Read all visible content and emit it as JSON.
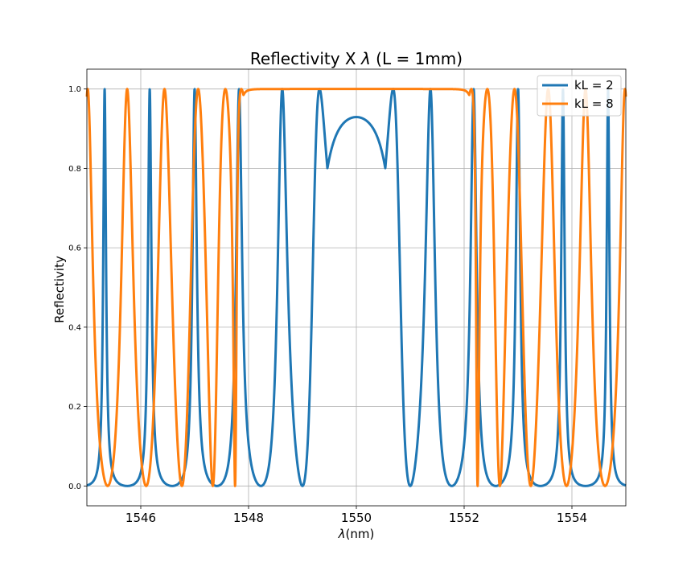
{
  "chart_data": {
    "type": "line",
    "title": "Reflectivity X λ (L = 1mm)",
    "title_prefix": "Reflectivity X ",
    "title_symbol": "λ",
    "title_suffix": " (L = 1mm)",
    "xlabel": "λ(nm)",
    "xlabel_symbol": "λ",
    "xlabel_unit": "(nm)",
    "ylabel": "Reflectivity",
    "xlim": [
      1545,
      1555
    ],
    "ylim": [
      -0.05,
      1.05
    ],
    "xticks": [
      1546,
      1548,
      1550,
      1552,
      1554
    ],
    "xtick_labels": [
      "1546",
      "1548",
      "1550",
      "1552",
      "1554"
    ],
    "yticks": [
      0.0,
      0.2,
      0.4,
      0.6,
      0.8,
      1.0
    ],
    "ytick_labels": [
      "0.0",
      "0.2",
      "0.4",
      "0.6",
      "0.8",
      "1.0"
    ],
    "grid": true,
    "legend_position": "top-right",
    "series": [
      {
        "name": "kL = 2",
        "color": "#1f77b4",
        "model": "uniform-bragg-grating",
        "kL": 2,
        "center_wavelength_nm": 1550,
        "zero_offset_nm": 1.0,
        "x": [
          1545.0,
          1545.5,
          1546.0,
          1546.3,
          1546.7,
          1547.0,
          1547.4,
          1547.9,
          1548.3,
          1548.7,
          1549.0,
          1549.3,
          1549.6,
          1550.0,
          1550.4,
          1550.7,
          1551.0,
          1551.3,
          1551.7,
          1552.1,
          1552.6,
          1553.0,
          1553.4,
          1554.0,
          1554.6,
          1555.0
        ],
        "values": [
          0.0,
          0.012,
          0.0,
          0.018,
          0.0,
          0.033,
          0.0,
          0.062,
          0.0,
          0.158,
          0.0,
          0.6,
          0.88,
          0.929,
          0.88,
          0.6,
          0.0,
          0.158,
          0.0,
          0.062,
          0.0,
          0.033,
          0.0,
          0.018,
          0.012,
          0.0
        ]
      },
      {
        "name": "kL = 8",
        "color": "#ff7f0e",
        "model": "uniform-bragg-grating",
        "kL": 8,
        "center_wavelength_nm": 1550,
        "zero_offset_nm": 2.25,
        "x": [
          1545.0,
          1545.35,
          1545.7,
          1546.05,
          1546.4,
          1546.7,
          1547.05,
          1547.3,
          1547.6,
          1547.75,
          1547.9,
          1548.2,
          1550.0,
          1551.8,
          1552.1,
          1552.25,
          1552.4,
          1552.7,
          1552.95,
          1553.3,
          1553.6,
          1553.95,
          1554.3,
          1554.65,
          1555.0
        ],
        "values": [
          0.175,
          0.0,
          0.243,
          0.0,
          0.348,
          0.0,
          0.513,
          0.0,
          0.751,
          0.0,
          0.99,
          1.0,
          1.0,
          1.0,
          0.99,
          0.0,
          0.751,
          0.0,
          0.513,
          0.0,
          0.348,
          0.0,
          0.243,
          0.0,
          0.175
        ]
      }
    ]
  }
}
